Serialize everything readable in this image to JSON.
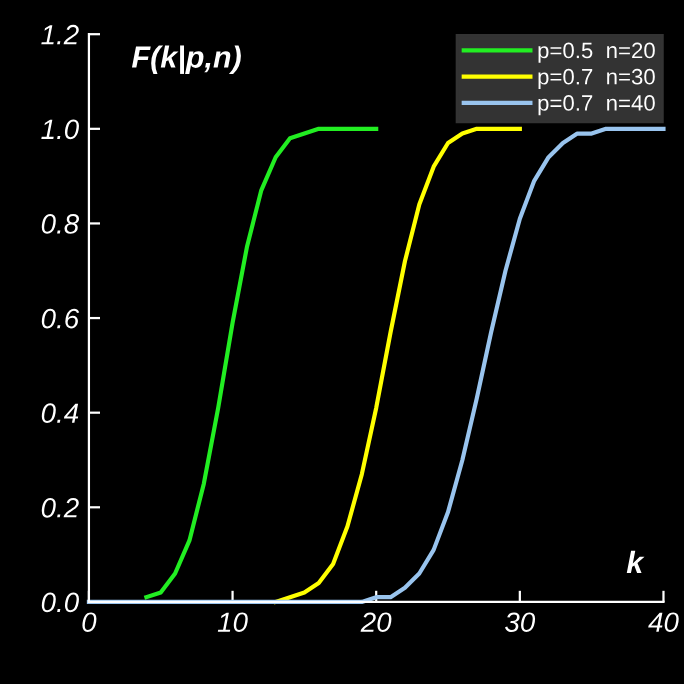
{
  "chart_data": {
    "type": "line",
    "xlabel": "k",
    "ylabel": "F(k|p,n)",
    "xlim": [
      0,
      40
    ],
    "xticks": [
      0,
      10,
      20,
      30,
      40
    ],
    "ylim": [
      0,
      1.2
    ],
    "yticks": [
      {
        "value": 0,
        "label": "0.0"
      },
      {
        "value": 0.2,
        "label": "0.2"
      },
      {
        "value": 0.4,
        "label": "0.4"
      },
      {
        "value": 0.6,
        "label": "0.6"
      },
      {
        "value": 0.8,
        "label": "0.8"
      },
      {
        "value": 1,
        "label": "1.0"
      },
      {
        "value": 1.2,
        "label": "1.2"
      }
    ],
    "legend": "top right",
    "grid": false,
    "marker": "none",
    "line_style": "solid",
    "series": [
      {
        "name": "p=0.5  n=20",
        "color": "#22ee22",
        "x": [
          4,
          5,
          6,
          7,
          8,
          9,
          10,
          11,
          12,
          13,
          14,
          15,
          16,
          17,
          18,
          19,
          20
        ],
        "values": [
          0.01,
          0.02,
          0.06,
          0.13,
          0.25,
          0.41,
          0.59,
          0.75,
          0.87,
          0.94,
          0.98,
          0.99,
          1,
          1,
          1,
          1,
          1
        ]
      },
      {
        "name": "p=0.7  n=30",
        "color": "#ffff00",
        "x": [
          13,
          14,
          15,
          16,
          17,
          18,
          19,
          20,
          21,
          22,
          23,
          24,
          25,
          26,
          27,
          28,
          29,
          30
        ],
        "values": [
          0,
          0.01,
          0.02,
          0.04,
          0.08,
          0.16,
          0.27,
          0.41,
          0.57,
          0.72,
          0.84,
          0.92,
          0.97,
          0.99,
          1,
          1,
          1,
          1
        ]
      },
      {
        "name": "p=0.7  n=40",
        "color": "#99c4ee",
        "x": [
          0,
          1,
          2,
          3,
          4,
          5,
          6,
          7,
          8,
          9,
          10,
          11,
          12,
          13,
          14,
          15,
          16,
          17,
          18,
          19,
          20,
          21,
          22,
          23,
          24,
          25,
          26,
          27,
          28,
          29,
          30,
          31,
          32,
          33,
          34,
          35,
          36,
          37,
          38,
          39,
          40
        ],
        "values": [
          0,
          0,
          0,
          0,
          0,
          0,
          0,
          0,
          0,
          0,
          0,
          0,
          0,
          0,
          0,
          0,
          0,
          0,
          0,
          0,
          0.01,
          0.01,
          0.03,
          0.06,
          0.11,
          0.19,
          0.3,
          0.43,
          0.57,
          0.7,
          0.81,
          0.89,
          0.94,
          0.97,
          0.99,
          0.99,
          1,
          1,
          1,
          1,
          1
        ]
      }
    ]
  }
}
